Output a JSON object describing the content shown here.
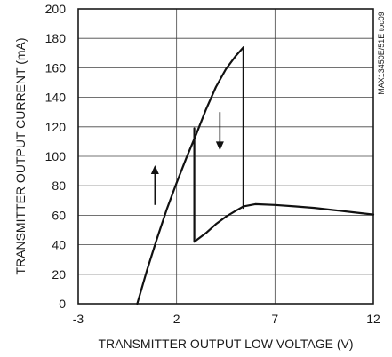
{
  "chart_data": {
    "type": "line",
    "title": "",
    "xlabel": "TRANSMITTER OUTPUT LOW VOLTAGE (V)",
    "ylabel": "TRANSMITTER OUTPUT CURRENT (mA)",
    "xlim": [
      -3,
      12
    ],
    "ylim": [
      0,
      200
    ],
    "x_ticks": [
      "-3",
      "2",
      "7",
      "12"
    ],
    "y_ticks": [
      "0",
      "20",
      "40",
      "60",
      "80",
      "100",
      "120",
      "140",
      "160",
      "180",
      "200"
    ],
    "grid": true,
    "figure_code": "MAX13450E/51E toc09",
    "series": [
      {
        "x": [
          0.0,
          0.5,
          1.0,
          1.5,
          2.0,
          2.5,
          3.0,
          3.5,
          4.0,
          4.5,
          5.0,
          5.4,
          5.4
        ],
        "y": [
          0,
          23,
          44,
          64,
          82,
          99,
          115,
          132,
          147,
          159,
          168,
          174,
          65
        ]
      },
      {
        "x": [
          2.9,
          2.9,
          3.5,
          4.0,
          4.5,
          5.0,
          5.4,
          6.0,
          7.0,
          8.0,
          9.0,
          10.0,
          11.0,
          12.0
        ],
        "y": [
          119,
          42,
          48,
          54,
          59,
          63,
          66,
          67.5,
          67,
          66,
          65,
          63.5,
          62,
          60.5
        ]
      }
    ],
    "annotations": [
      {
        "type": "arrow",
        "direction": "up",
        "x": 0.9,
        "y_from": 67,
        "y_to": 94
      },
      {
        "type": "arrow",
        "direction": "down",
        "x": 4.2,
        "y_from": 130,
        "y_to": 104
      }
    ]
  }
}
